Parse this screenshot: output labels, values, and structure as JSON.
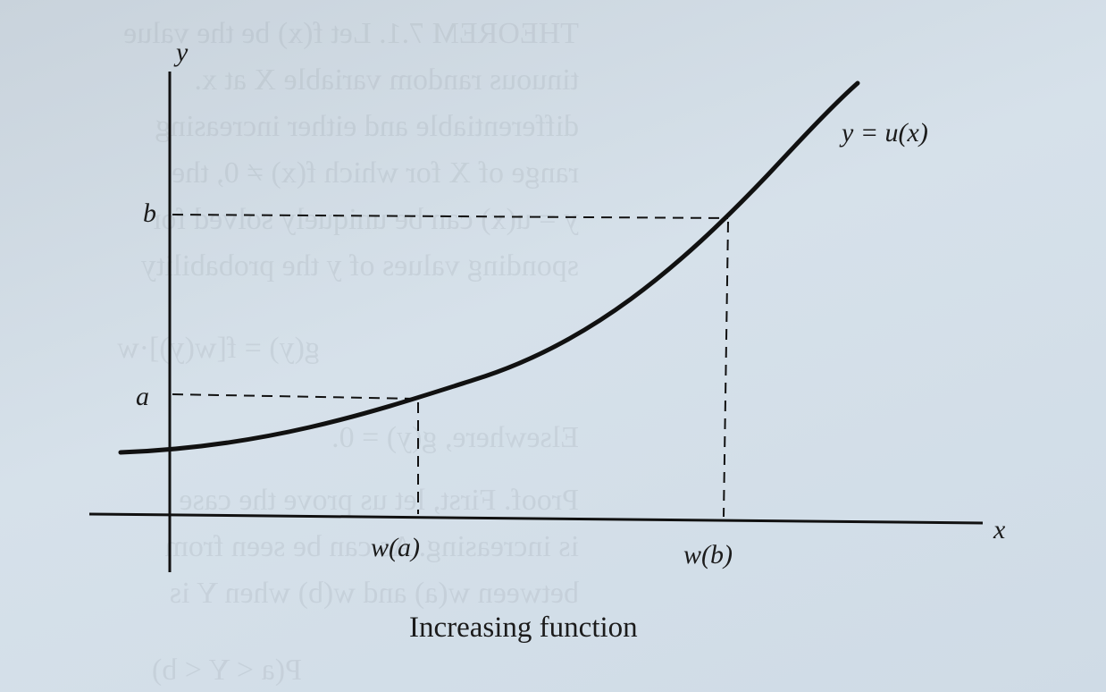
{
  "figure": {
    "caption": "Increasing function",
    "curve_label": "y = u(x)",
    "axis_labels": {
      "x": "x",
      "y": "y"
    },
    "y_markers": [
      "b",
      "a"
    ],
    "x_markers": [
      "w(a)",
      "w(b)"
    ]
  },
  "bleed_through_text": [
    "THEOREM 7.1. Let f(x) be the value",
    "tinuous random variable X at x.",
    "differentiable and either increasing",
    "range of X for which f(x) ≠ 0, the",
    "y = u(x) can be uniquely solved for",
    "sponding values of y the probability",
    "g(y) = f[w(y)]·w",
    "Elsewhere, g(y) = 0.",
    "Proof. First, let us prove the case",
    "is increasing. As can be seen from",
    "between w(a) and w(b) when Y is",
    "P(a < Y < b)"
  ],
  "colors": {
    "ink": "#111111",
    "paper": "#d3dee8"
  }
}
